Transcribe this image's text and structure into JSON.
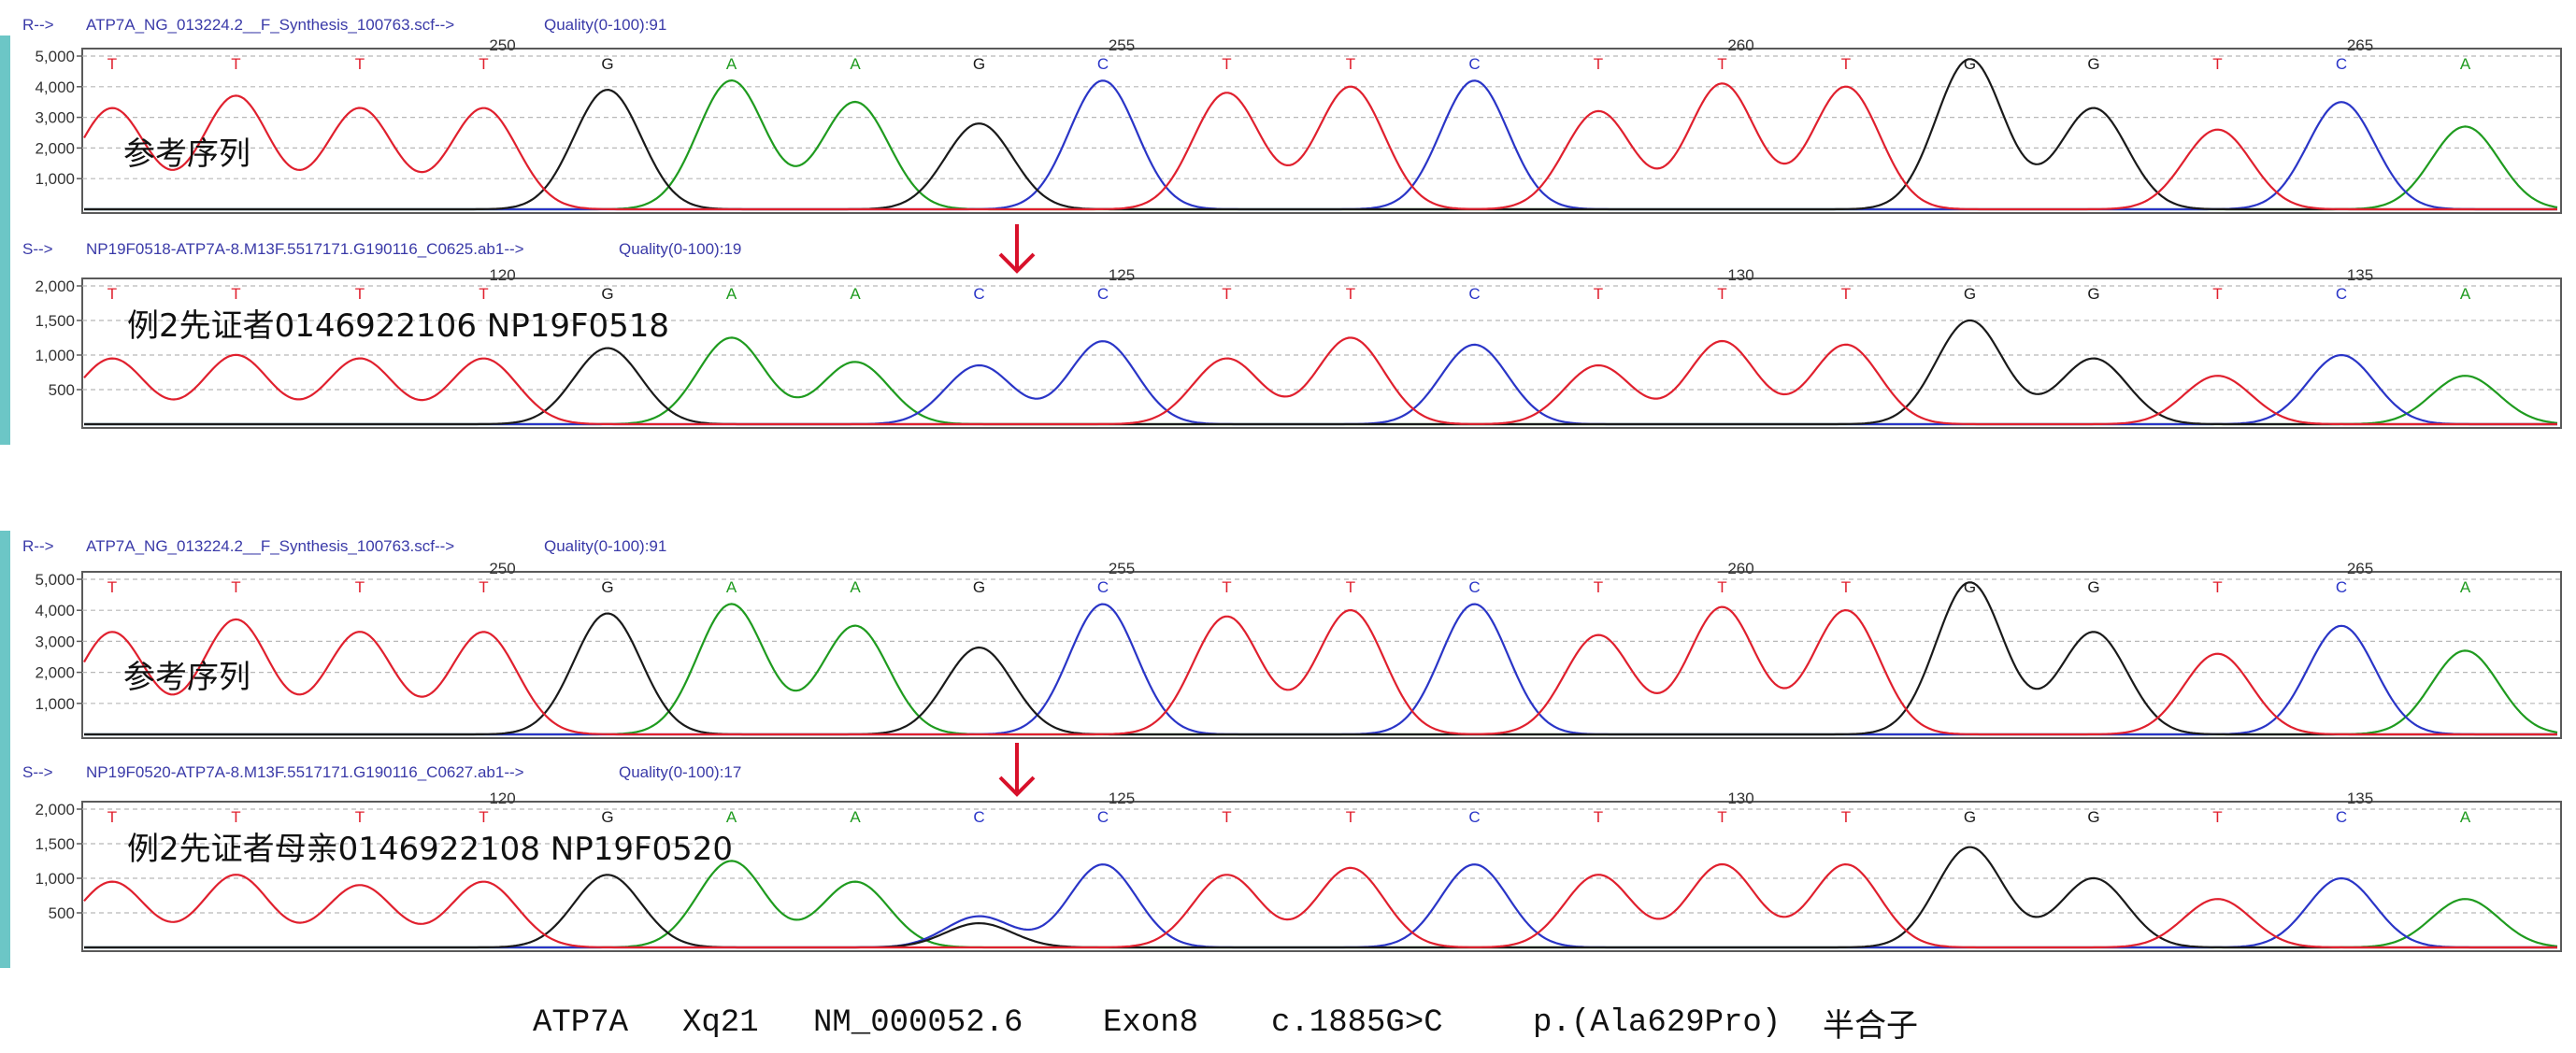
{
  "colors": {
    "A": "#1f9b1f",
    "C": "#2a35c7",
    "G": "#1a1a1a",
    "T": "#e0202e",
    "frame": "#5a5a5a",
    "accent_bar": "#6cc6c6",
    "arrow": "#d8102a",
    "label_text": "#3a3aa8",
    "axis_text": "#333333"
  },
  "chart_data": [
    {
      "type": "line",
      "header_left": "R-->",
      "file": "ATP7A_NG_013224.2__F_Synthesis_100763.scf-->",
      "quality": "Quality(0-100):91",
      "overlay_label": "参考序列",
      "ylim": [
        0,
        5000
      ],
      "yticks": [
        "5,000",
        "4,000",
        "3,000",
        "2,000",
        "1,000"
      ],
      "ytick_values": [
        5000,
        4000,
        3000,
        2000,
        1000
      ],
      "position_labels": [
        {
          "label": "250",
          "base_index": 3
        },
        {
          "label": "255",
          "base_index": 8
        },
        {
          "label": "260",
          "base_index": 13
        },
        {
          "label": "265",
          "base_index": 18
        }
      ],
      "bases": [
        "T",
        "T",
        "T",
        "T",
        "G",
        "A",
        "A",
        "G",
        "C",
        "T",
        "T",
        "C",
        "T",
        "T",
        "T",
        "G",
        "G",
        "T",
        "C",
        "A"
      ],
      "peaks": [
        3300,
        3700,
        3300,
        3300,
        3900,
        4200,
        3500,
        2800,
        4200,
        3800,
        4000,
        4200,
        3200,
        4100,
        4000,
        4900,
        3300,
        2600,
        3500,
        2700
      ]
    },
    {
      "type": "line",
      "header_left": "S-->",
      "file": "NP19F0518-ATP7A-8.M13F.5517171.G190116_C0625.ab1-->",
      "quality": "Quality(0-100):19",
      "overlay_label": "例2先证者0146922106 NP19F0518",
      "ylim": [
        0,
        2000
      ],
      "yticks": [
        "2,000",
        "1,500",
        "1,000",
        "500"
      ],
      "ytick_values": [
        2000,
        1500,
        1000,
        500
      ],
      "position_labels": [
        {
          "label": "120",
          "base_index": 3
        },
        {
          "label": "125",
          "base_index": 8
        },
        {
          "label": "130",
          "base_index": 13
        },
        {
          "label": "135",
          "base_index": 18
        }
      ],
      "bases": [
        "T",
        "T",
        "T",
        "T",
        "G",
        "A",
        "A",
        "C",
        "C",
        "T",
        "T",
        "C",
        "T",
        "T",
        "T",
        "G",
        "G",
        "T",
        "C",
        "A"
      ],
      "peaks": [
        950,
        1000,
        950,
        950,
        1100,
        1250,
        900,
        850,
        1200,
        950,
        1250,
        1150,
        850,
        1200,
        1150,
        1500,
        950,
        700,
        1000,
        700
      ]
    },
    {
      "type": "line",
      "header_left": "R-->",
      "file": "ATP7A_NG_013224.2__F_Synthesis_100763.scf-->",
      "quality": "Quality(0-100):91",
      "overlay_label": "参考序列",
      "ylim": [
        0,
        5000
      ],
      "yticks": [
        "5,000",
        "4,000",
        "3,000",
        "2,000",
        "1,000"
      ],
      "ytick_values": [
        5000,
        4000,
        3000,
        2000,
        1000
      ],
      "position_labels": [
        {
          "label": "250",
          "base_index": 3
        },
        {
          "label": "255",
          "base_index": 8
        },
        {
          "label": "260",
          "base_index": 13
        },
        {
          "label": "265",
          "base_index": 18
        }
      ],
      "bases": [
        "T",
        "T",
        "T",
        "T",
        "G",
        "A",
        "A",
        "G",
        "C",
        "T",
        "T",
        "C",
        "T",
        "T",
        "T",
        "G",
        "G",
        "T",
        "C",
        "A"
      ],
      "peaks": [
        3300,
        3700,
        3300,
        3300,
        3900,
        4200,
        3500,
        2800,
        4200,
        3800,
        4000,
        4200,
        3200,
        4100,
        4000,
        4900,
        3300,
        2600,
        3500,
        2700
      ]
    },
    {
      "type": "line",
      "header_left": "S-->",
      "file": "NP19F0520-ATP7A-8.M13F.5517171.G190116_C0627.ab1-->",
      "quality": "Quality(0-100):17",
      "overlay_label": "例2先证者母亲0146922108 NP19F0520",
      "ylim": [
        0,
        2000
      ],
      "yticks": [
        "2,000",
        "1,500",
        "1,000",
        "500"
      ],
      "ytick_values": [
        2000,
        1500,
        1000,
        500
      ],
      "position_labels": [
        {
          "label": "120",
          "base_index": 3
        },
        {
          "label": "125",
          "base_index": 8
        },
        {
          "label": "130",
          "base_index": 13
        },
        {
          "label": "135",
          "base_index": 18
        }
      ],
      "bases": [
        "T",
        "T",
        "T",
        "T",
        "G",
        "A",
        "A",
        "C",
        "C",
        "T",
        "T",
        "C",
        "T",
        "T",
        "T",
        "G",
        "G",
        "T",
        "C",
        "A"
      ],
      "peaks": [
        950,
        1050,
        900,
        950,
        1050,
        1250,
        950,
        450,
        1200,
        1050,
        1150,
        1200,
        1050,
        1200,
        1200,
        1450,
        1000,
        700,
        1000,
        700
      ],
      "secondary_peak": {
        "base_index": 7,
        "base": "G",
        "value": 350
      }
    }
  ],
  "caption": {
    "gene": "ATP7A",
    "locus": "Xq21",
    "transcript": "NM_000052.6",
    "exon": "Exon8",
    "cdna": "c.1885G>C",
    "protein": "p.(Ala629Pro)",
    "zygosity": "半合子"
  }
}
